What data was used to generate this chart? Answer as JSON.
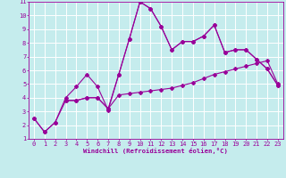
{
  "title": "",
  "xlabel": "Windchill (Refroidissement éolien,°C)",
  "bg_color": "#c5eced",
  "line_color": "#990099",
  "grid_color": "#ffffff",
  "xlim": [
    -0.5,
    23.5
  ],
  "ylim": [
    1,
    11
  ],
  "xticks": [
    0,
    1,
    2,
    3,
    4,
    5,
    6,
    7,
    8,
    9,
    10,
    11,
    12,
    13,
    14,
    15,
    16,
    17,
    18,
    19,
    20,
    21,
    22,
    23
  ],
  "yticks": [
    1,
    2,
    3,
    4,
    5,
    6,
    7,
    8,
    9,
    10,
    11
  ],
  "series1_x": [
    0,
    1,
    2,
    3,
    4,
    5,
    6,
    7,
    8,
    9,
    10,
    11,
    12,
    13,
    14,
    15,
    16,
    17,
    18,
    19,
    20,
    21,
    22,
    23
  ],
  "series1_y": [
    2.5,
    1.5,
    2.2,
    4.0,
    4.8,
    5.7,
    4.8,
    3.1,
    5.7,
    8.3,
    11.0,
    10.5,
    9.2,
    7.5,
    8.1,
    8.1,
    8.5,
    9.3,
    7.3,
    7.5,
    7.5,
    6.8,
    6.1,
    4.9
  ],
  "series2_x": [
    0,
    1,
    2,
    3,
    4,
    5,
    6,
    7,
    8,
    9,
    10,
    11,
    12,
    13,
    14,
    15,
    16,
    17,
    18,
    19,
    20,
    21,
    22,
    23
  ],
  "series2_y": [
    2.5,
    1.5,
    2.2,
    3.8,
    3.8,
    4.0,
    4.0,
    3.2,
    4.2,
    4.3,
    4.4,
    4.5,
    4.6,
    4.7,
    4.9,
    5.1,
    5.4,
    5.7,
    5.9,
    6.1,
    6.3,
    6.5,
    6.7,
    5.0
  ],
  "series3_x": [
    3,
    4,
    5,
    6,
    7,
    8,
    9,
    10,
    11,
    12,
    13,
    14,
    15,
    16,
    17,
    18,
    19,
    20,
    21,
    22,
    23
  ],
  "series3_y": [
    3.8,
    3.8,
    4.0,
    4.0,
    3.2,
    5.7,
    8.3,
    11.0,
    10.5,
    9.2,
    7.5,
    8.1,
    8.1,
    8.5,
    9.3,
    7.3,
    7.5,
    7.5,
    6.8,
    6.1,
    4.9
  ],
  "tick_fontsize": 5.0,
  "xlabel_fontsize": 5.2,
  "marker_size": 2.0,
  "linewidth": 0.8
}
